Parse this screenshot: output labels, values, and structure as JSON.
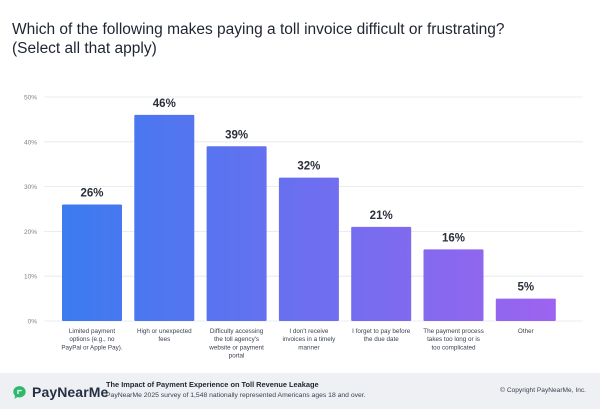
{
  "header": {
    "title_line1": "Which of the following makes paying a toll invoice difficult or frustrating?",
    "title_line2": "(Select all that apply)"
  },
  "chart_data": {
    "type": "bar",
    "categories": [
      [
        "Limited payment",
        "options (e.g., no",
        "PayPal or Apple Pay)."
      ],
      [
        "High or unexpected",
        "fees"
      ],
      [
        "Difficulty accessing",
        "the toll agency's",
        "website or payment",
        "portal"
      ],
      [
        "I don't receive",
        "invoices in a timely",
        "manner"
      ],
      [
        "I forget to pay before",
        "the due date"
      ],
      [
        "The payment process",
        "takes too long or is",
        "too complicated"
      ],
      [
        "Other"
      ]
    ],
    "values": [
      26,
      46,
      39,
      32,
      21,
      16,
      5
    ],
    "value_labels": [
      "26%",
      "46%",
      "39%",
      "32%",
      "21%",
      "16%",
      "5%"
    ],
    "ylim": [
      0,
      50
    ],
    "yticks": [
      "0%",
      "10%",
      "20%",
      "30%",
      "40%",
      "50%"
    ],
    "grid": true,
    "colors": {
      "bar_start": "#3b7bf0",
      "bar_end": "#9e63ef",
      "grid": "#e3e6ea",
      "tick_text": "#7a818d",
      "value_text": "#2a2f3a"
    }
  },
  "footer": {
    "logo_text": "PayNearMe",
    "logo_icon": "paynearme-chat-bubble-icon",
    "logo_color": "#2fb86a",
    "title": "The Impact of Payment Experience on Toll Revenue Leakage",
    "subtitle": "PayNearMe 2025 survey of 1,548 nationally represented Americans ages 18 and over.",
    "copyright": "© Copyright PayNearMe, Inc."
  }
}
